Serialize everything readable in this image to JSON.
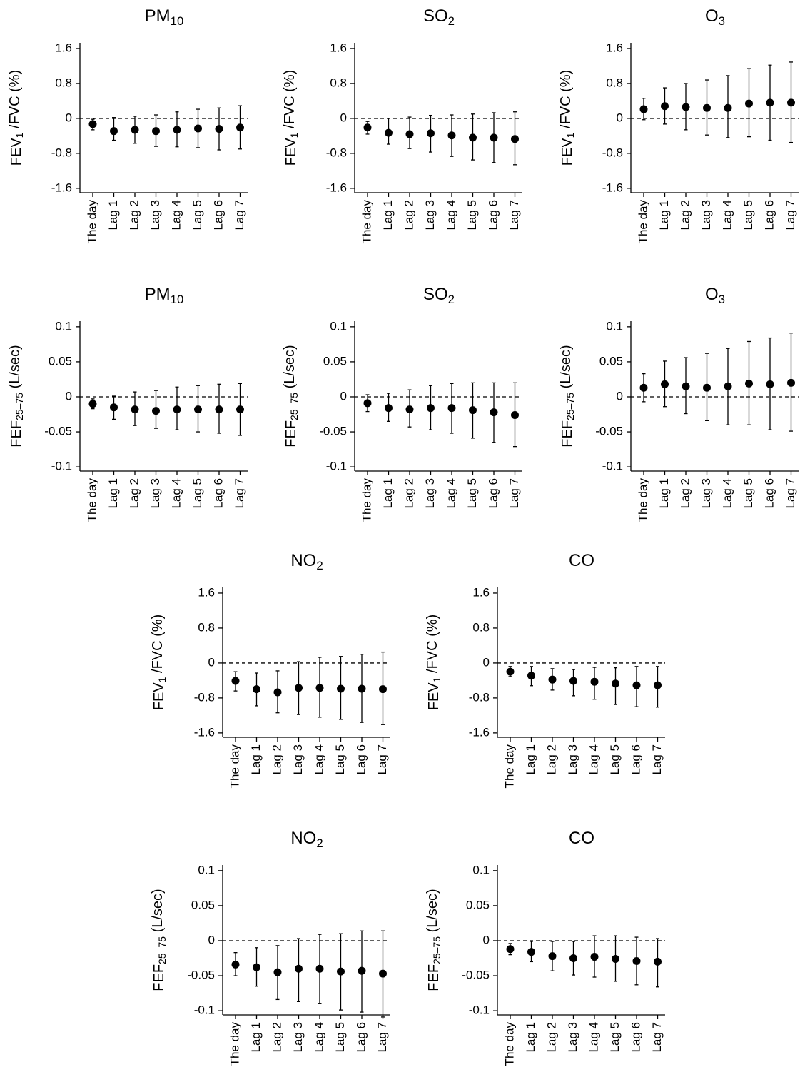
{
  "chart_data": [
    {
      "type": "errorbar",
      "title": [
        {
          "text": "PM"
        },
        {
          "text": "10",
          "sub": true
        }
      ],
      "ylabel": [
        {
          "text": "FEV"
        },
        {
          "text": "1",
          "sub": true
        },
        {
          "text": " /FVC (%)"
        }
      ],
      "categories": [
        "The day",
        "Lag 1",
        "Lag 2",
        "Lag 3",
        "Lag 4",
        "Lag 5",
        "Lag 6",
        "Lag 7"
      ],
      "values": [
        -0.13,
        -0.29,
        -0.26,
        -0.29,
        -0.26,
        -0.23,
        -0.24,
        -0.21
      ],
      "lower": [
        -0.26,
        -0.5,
        -0.57,
        -0.64,
        -0.65,
        -0.67,
        -0.72,
        -0.7
      ],
      "upper": [
        -0.02,
        0.02,
        0.05,
        0.08,
        0.15,
        0.21,
        0.24,
        0.29
      ],
      "ylim": [
        -1.7,
        1.73
      ],
      "yticks": [
        1.6,
        0.8,
        0,
        -0.8,
        -1.6
      ],
      "hline": 0,
      "color": "#000000"
    },
    {
      "type": "errorbar",
      "title": [
        {
          "text": "SO"
        },
        {
          "text": "2",
          "sub": true
        }
      ],
      "ylabel": [
        {
          "text": "FEV"
        },
        {
          "text": "1",
          "sub": true
        },
        {
          "text": " /FVC (%)"
        }
      ],
      "categories": [
        "The day",
        "Lag 1",
        "Lag 2",
        "Lag 3",
        "Lag 4",
        "Lag 5",
        "Lag 6",
        "Lag 7"
      ],
      "values": [
        -0.21,
        -0.33,
        -0.36,
        -0.34,
        -0.39,
        -0.44,
        -0.44,
        -0.47
      ],
      "lower": [
        -0.36,
        -0.59,
        -0.69,
        -0.77,
        -0.87,
        -0.95,
        -1.01,
        -1.06
      ],
      "upper": [
        -0.07,
        0,
        0.03,
        0.07,
        0.08,
        0.1,
        0.13,
        0.15
      ],
      "ylim": [
        -1.7,
        1.73
      ],
      "yticks": [
        1.6,
        0.8,
        0,
        -0.8,
        -1.6
      ],
      "hline": 0,
      "color": "#000000"
    },
    {
      "type": "errorbar",
      "title": [
        {
          "text": "O"
        },
        {
          "text": "3",
          "sub": true
        }
      ],
      "ylabel": [
        {
          "text": "FEV"
        },
        {
          "text": "1",
          "sub": true
        },
        {
          "text": " /FVC (%)"
        }
      ],
      "categories": [
        "The day",
        "Lag 1",
        "Lag 2",
        "Lag 3",
        "Lag 4",
        "Lag 5",
        "Lag 6",
        "Lag 7"
      ],
      "values": [
        0.21,
        0.28,
        0.26,
        0.24,
        0.24,
        0.34,
        0.36,
        0.36
      ],
      "lower": [
        -0.03,
        -0.13,
        -0.26,
        -0.38,
        -0.44,
        -0.42,
        -0.5,
        -0.55
      ],
      "upper": [
        0.46,
        0.7,
        0.8,
        0.88,
        0.98,
        1.14,
        1.22,
        1.29
      ],
      "ylim": [
        -1.7,
        1.73
      ],
      "yticks": [
        1.6,
        0.8,
        0,
        -0.8,
        -1.6
      ],
      "hline": 0,
      "color": "#000000"
    },
    {
      "type": "errorbar",
      "title": [
        {
          "text": "PM"
        },
        {
          "text": "10",
          "sub": true
        }
      ],
      "ylabel": [
        {
          "text": "FEF"
        },
        {
          "text": "25–75",
          "sub": true
        },
        {
          "text": " (L/sec)"
        }
      ],
      "categories": [
        "The day",
        "Lag 1",
        "Lag 2",
        "Lag 3",
        "Lag 4",
        "Lag 5",
        "Lag 6",
        "Lag 7"
      ],
      "values": [
        -0.01,
        -0.015,
        -0.018,
        -0.02,
        -0.018,
        -0.018,
        -0.018,
        -0.018
      ],
      "lower": [
        -0.017,
        -0.032,
        -0.041,
        -0.045,
        -0.047,
        -0.05,
        -0.052,
        -0.055
      ],
      "upper": [
        -0.003,
        0.001,
        0.007,
        0.009,
        0.014,
        0.016,
        0.018,
        0.019
      ],
      "ylim": [
        -0.106,
        0.108
      ],
      "yticks": [
        0.1,
        0.05,
        0,
        -0.05,
        -0.1
      ],
      "hline": 0,
      "color": "#000000"
    },
    {
      "type": "errorbar",
      "title": [
        {
          "text": "SO"
        },
        {
          "text": "2",
          "sub": true
        }
      ],
      "ylabel": [
        {
          "text": "FEF"
        },
        {
          "text": "25–75",
          "sub": true
        },
        {
          "text": " (L/sec)"
        }
      ],
      "categories": [
        "The day",
        "Lag 1",
        "Lag 2",
        "Lag 3",
        "Lag 4",
        "Lag 5",
        "Lag 6",
        "Lag 7"
      ],
      "values": [
        -0.009,
        -0.016,
        -0.018,
        -0.016,
        -0.016,
        -0.019,
        -0.022,
        -0.026
      ],
      "lower": [
        -0.021,
        -0.035,
        -0.043,
        -0.047,
        -0.052,
        -0.059,
        -0.065,
        -0.071
      ],
      "upper": [
        0.003,
        0.005,
        0.01,
        0.016,
        0.019,
        0.02,
        0.02,
        0.02
      ],
      "ylim": [
        -0.106,
        0.108
      ],
      "yticks": [
        0.1,
        0.05,
        0,
        -0.05,
        -0.1
      ],
      "hline": 0,
      "color": "#000000"
    },
    {
      "type": "errorbar",
      "title": [
        {
          "text": "O"
        },
        {
          "text": "3",
          "sub": true
        }
      ],
      "ylabel": [
        {
          "text": "FEF"
        },
        {
          "text": "25–75",
          "sub": true
        },
        {
          "text": " (L/sec)"
        }
      ],
      "categories": [
        "The day",
        "Lag 1",
        "Lag 2",
        "Lag 3",
        "Lag 4",
        "Lag 5",
        "Lag 6",
        "Lag 7"
      ],
      "values": [
        0.013,
        0.018,
        0.015,
        0.013,
        0.015,
        0.019,
        0.018,
        0.02
      ],
      "lower": [
        -0.007,
        -0.014,
        -0.024,
        -0.034,
        -0.04,
        -0.04,
        -0.047,
        -0.049
      ],
      "upper": [
        0.033,
        0.051,
        0.056,
        0.062,
        0.069,
        0.079,
        0.084,
        0.091
      ],
      "ylim": [
        -0.106,
        0.108
      ],
      "yticks": [
        0.1,
        0.05,
        0,
        -0.05,
        -0.1
      ],
      "hline": 0,
      "color": "#000000"
    },
    {
      "type": "errorbar",
      "title": [
        {
          "text": "NO"
        },
        {
          "text": "2",
          "sub": true
        }
      ],
      "ylabel": [
        {
          "text": "FEV"
        },
        {
          "text": "1",
          "sub": true
        },
        {
          "text": " /FVC (%)"
        }
      ],
      "categories": [
        "The day",
        "Lag 1",
        "Lag 2",
        "Lag 3",
        "Lag 4",
        "Lag 5",
        "Lag 6",
        "Lag 7"
      ],
      "values": [
        -0.41,
        -0.6,
        -0.67,
        -0.57,
        -0.57,
        -0.59,
        -0.59,
        -0.6
      ],
      "lower": [
        -0.64,
        -0.98,
        -1.14,
        -1.18,
        -1.24,
        -1.29,
        -1.36,
        -1.41
      ],
      "upper": [
        -0.2,
        -0.23,
        -0.18,
        0.03,
        0.13,
        0.15,
        0.2,
        0.25
      ],
      "ylim": [
        -1.7,
        1.73
      ],
      "yticks": [
        1.6,
        0.8,
        0,
        -0.8,
        -1.6
      ],
      "hline": 0,
      "color": "#000000"
    },
    {
      "type": "errorbar",
      "title": [
        {
          "text": "CO"
        }
      ],
      "ylabel": [
        {
          "text": "FEV"
        },
        {
          "text": "1",
          "sub": true
        },
        {
          "text": " /FVC (%)"
        }
      ],
      "categories": [
        "The day",
        "Lag 1",
        "Lag 2",
        "Lag 3",
        "Lag 4",
        "Lag 5",
        "Lag 6",
        "Lag 7"
      ],
      "values": [
        -0.2,
        -0.29,
        -0.38,
        -0.41,
        -0.43,
        -0.47,
        -0.51,
        -0.51
      ],
      "lower": [
        -0.31,
        -0.52,
        -0.62,
        -0.75,
        -0.83,
        -0.95,
        -1.0,
        -1.01
      ],
      "upper": [
        -0.08,
        -0.08,
        -0.13,
        -0.15,
        -0.1,
        -0.11,
        -0.08,
        -0.08
      ],
      "ylim": [
        -1.7,
        1.73
      ],
      "yticks": [
        1.6,
        0.8,
        0,
        -0.8,
        -1.6
      ],
      "hline": 0,
      "color": "#000000"
    },
    {
      "type": "errorbar",
      "title": [
        {
          "text": "NO"
        },
        {
          "text": "2",
          "sub": true
        }
      ],
      "ylabel": [
        {
          "text": "FEF"
        },
        {
          "text": "25–75",
          "sub": true
        },
        {
          "text": " (L/sec)"
        }
      ],
      "categories": [
        "The day",
        "Lag 1",
        "Lag 2",
        "Lag 3",
        "Lag 4",
        "Lag 5",
        "Lag 6",
        "Lag 7"
      ],
      "values": [
        -0.034,
        -0.038,
        -0.045,
        -0.04,
        -0.04,
        -0.044,
        -0.043,
        -0.047
      ],
      "lower": [
        -0.05,
        -0.065,
        -0.084,
        -0.087,
        -0.09,
        -0.099,
        -0.102,
        -0.109
      ],
      "upper": [
        -0.017,
        -0.01,
        -0.007,
        0.003,
        0.009,
        0.01,
        0.014,
        0.014
      ],
      "ylim": [
        -0.106,
        0.108
      ],
      "yticks": [
        0.1,
        0.05,
        0,
        -0.05,
        -0.1
      ],
      "hline": 0,
      "color": "#000000"
    },
    {
      "type": "errorbar",
      "title": [
        {
          "text": "CO"
        }
      ],
      "ylabel": [
        {
          "text": "FEF"
        },
        {
          "text": "25–75",
          "sub": true
        },
        {
          "text": " (L/sec)"
        }
      ],
      "categories": [
        "The day",
        "Lag 1",
        "Lag 2",
        "Lag 3",
        "Lag 4",
        "Lag 5",
        "Lag 6",
        "Lag 7"
      ],
      "values": [
        -0.012,
        -0.016,
        -0.022,
        -0.025,
        -0.023,
        -0.026,
        -0.029,
        -0.03
      ],
      "lower": [
        -0.02,
        -0.03,
        -0.043,
        -0.049,
        -0.052,
        -0.058,
        -0.063,
        -0.066
      ],
      "upper": [
        -0.004,
        -0.001,
        -0.001,
        -0.001,
        0.007,
        0.007,
        0.005,
        0.003
      ],
      "ylim": [
        -0.106,
        0.108
      ],
      "yticks": [
        0.1,
        0.05,
        0,
        -0.05,
        -0.1
      ],
      "hline": 0,
      "color": "#000000"
    }
  ]
}
